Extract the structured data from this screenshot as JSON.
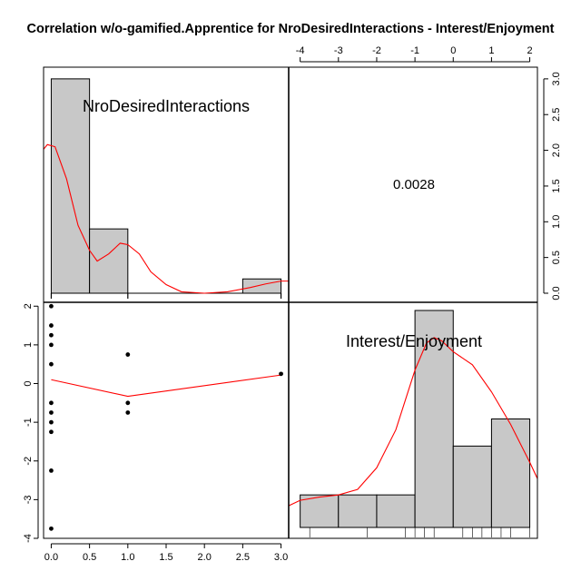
{
  "title": "Correlation w/o-gamified.Apprentice for NroDesiredInteractions - Interest/Enjoyment",
  "chart_data": {
    "type": "scatter",
    "variables": [
      "NroDesiredInteractions",
      "Interest/Enjoyment"
    ],
    "correlation": "0.0028",
    "colors": {
      "density": "#ff0000",
      "bars": "#c8c8c8",
      "lowess": "#ff0000"
    },
    "scatter": {
      "x": [
        0,
        0,
        0,
        0,
        0,
        0,
        0,
        0,
        0,
        0,
        0,
        1,
        1,
        1,
        3
      ],
      "y": [
        2.0,
        1.5,
        1.25,
        1.0,
        0.5,
        -0.5,
        -0.75,
        -1.0,
        -1.25,
        -2.25,
        -3.75,
        0.75,
        -0.5,
        -0.75,
        0.25
      ],
      "lowess_x": [
        0,
        1,
        3
      ],
      "lowess_y": [
        0.1,
        -0.33,
        0.22
      ],
      "xlim": [
        -0.1,
        3.1
      ],
      "ylim": [
        -4.0,
        2.1
      ],
      "xticks": [
        "0.0",
        "0.5",
        "1.0",
        "1.5",
        "2.0",
        "2.5",
        "3.0"
      ],
      "yticks": [
        "-4",
        "-3",
        "-2",
        "-1",
        "0",
        "1",
        "2"
      ]
    },
    "hist_x": {
      "breaks": [
        0,
        0.5,
        1,
        1.5,
        2,
        2.5,
        3
      ],
      "density": [
        3.0,
        0.9,
        0,
        0,
        0,
        0.2
      ],
      "density_curve_x": [
        -0.15,
        -0.05,
        0.05,
        0.2,
        0.35,
        0.5,
        0.6,
        0.75,
        0.9,
        1.0,
        1.15,
        1.3,
        1.5,
        1.7,
        2.0,
        2.3,
        2.6,
        2.8,
        3.0,
        3.15
      ],
      "density_curve_y": [
        1.95,
        2.08,
        2.05,
        1.6,
        0.95,
        0.6,
        0.45,
        0.55,
        0.7,
        0.68,
        0.55,
        0.3,
        0.12,
        0.02,
        0.0,
        0.02,
        0.08,
        0.13,
        0.17,
        0.17
      ],
      "rug": [
        0,
        1,
        3
      ],
      "xlim": [
        -0.1,
        3.1
      ],
      "ylim": [
        0,
        3.1
      ],
      "yticks": [
        "0.0",
        "0.5",
        "1.0",
        "1.5",
        "2.0",
        "2.5",
        "3.0"
      ]
    },
    "hist_y": {
      "breaks": [
        -4,
        -3,
        -2,
        -1,
        0,
        1,
        2
      ],
      "counts": [
        0.3,
        0.3,
        0.3,
        2.0,
        0.75,
        1.0
      ],
      "density_curve_x": [
        -4.3,
        -4.0,
        -3.5,
        -3.0,
        -2.5,
        -2.0,
        -1.5,
        -1.0,
        -0.7,
        -0.5,
        -0.3,
        0.0,
        0.5,
        1.0,
        1.5,
        2.0,
        2.2
      ],
      "density_curve_y": [
        0.2,
        0.25,
        0.28,
        0.3,
        0.35,
        0.55,
        0.9,
        1.45,
        1.7,
        1.75,
        1.72,
        1.62,
        1.5,
        1.25,
        0.95,
        0.6,
        0.45
      ],
      "rug": [
        -3.75,
        -2.25,
        -1.25,
        -1.0,
        -0.75,
        -0.5,
        0.25,
        0.5,
        0.75,
        1.0,
        1.25,
        1.5,
        2.0
      ],
      "xticks": [
        "-4",
        "-3",
        "-2",
        "-1",
        "0",
        "1",
        "2"
      ],
      "xlim": [
        -4.3,
        2.2
      ]
    }
  }
}
